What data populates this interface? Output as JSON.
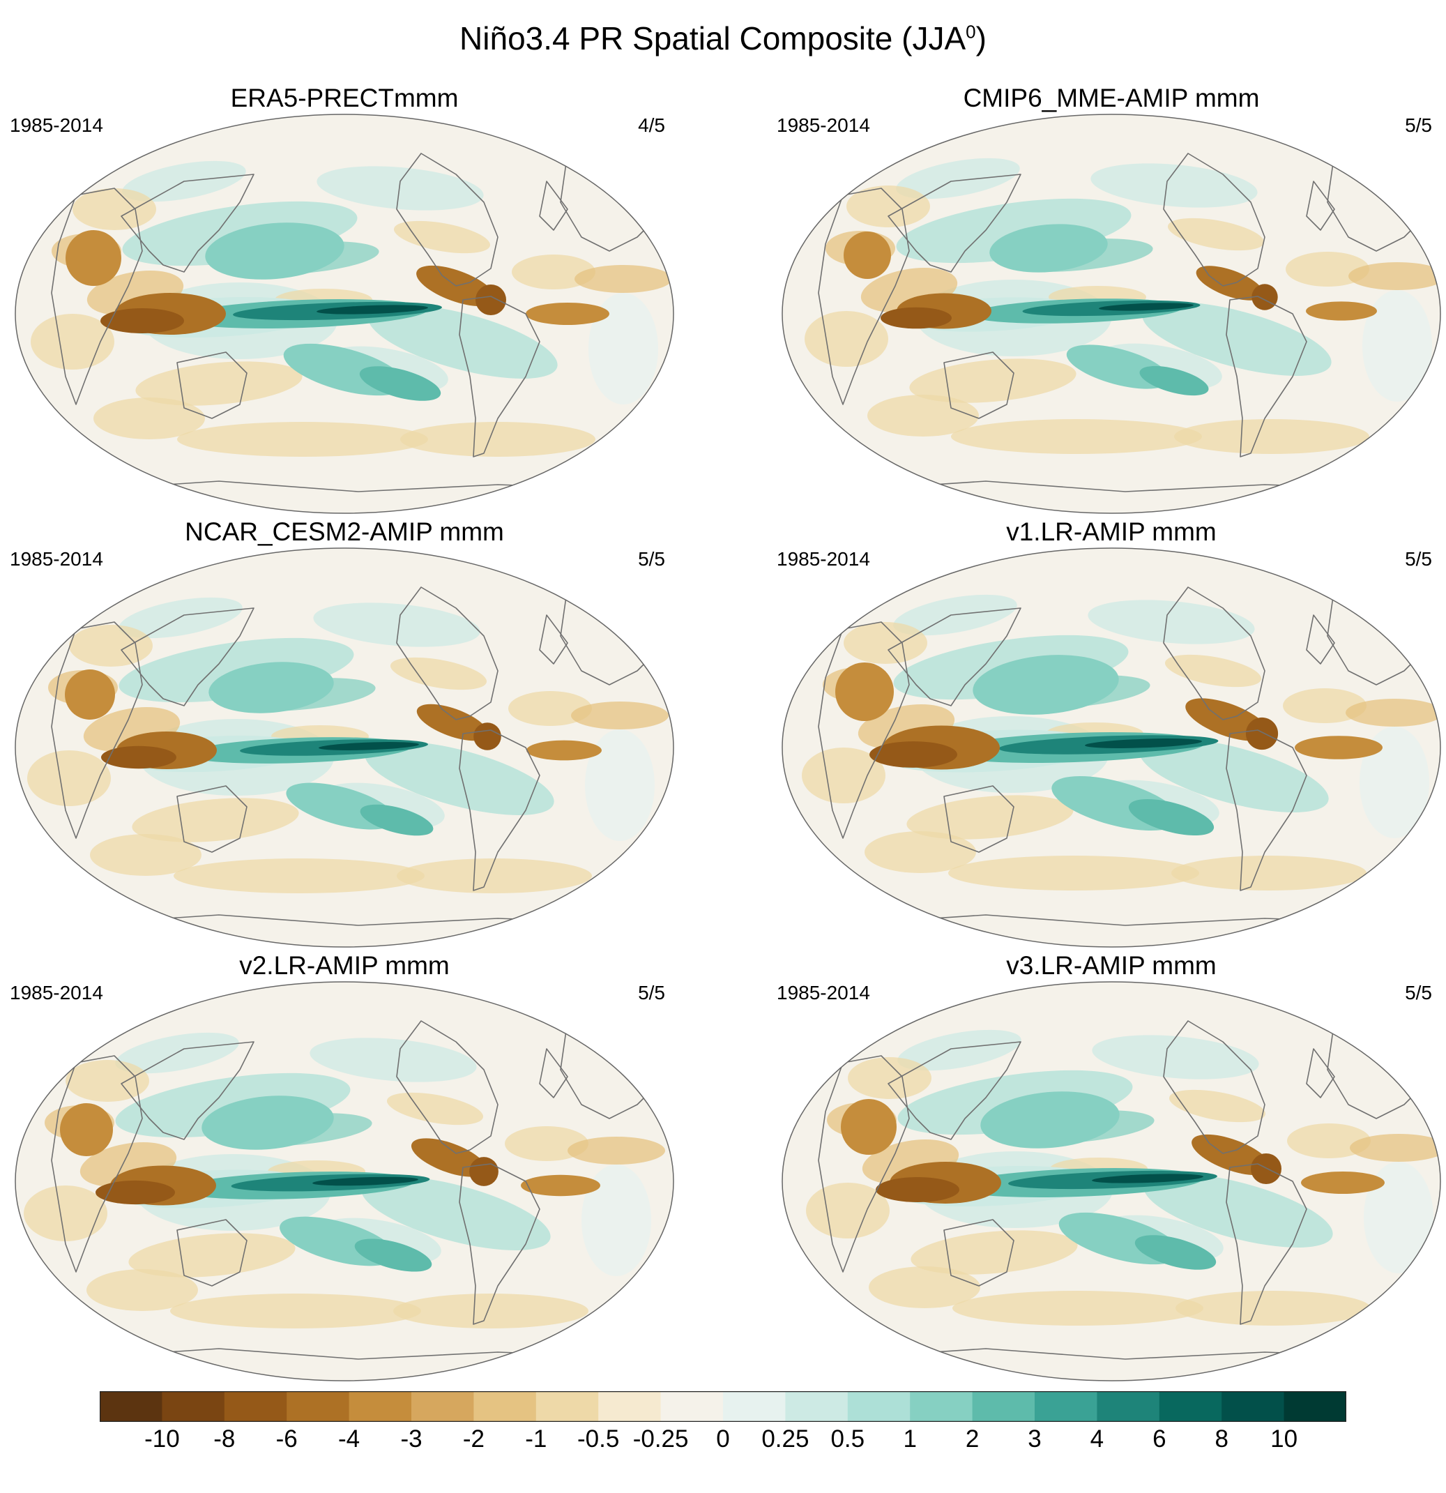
{
  "figure": {
    "title": "Niño3.4 PR Spatial Composite (JJA",
    "title_sup": "0",
    "title_close": ")"
  },
  "panels": [
    {
      "title": "ERA5-PRECTmmm",
      "years": "1985-2014",
      "fraction": "4/5"
    },
    {
      "title": "CMIP6_MME-AMIP  mmm",
      "years": "1985-2014",
      "fraction": "5/5"
    },
    {
      "title": "NCAR_CESM2-AMIP  mmm",
      "years": "1985-2014",
      "fraction": "5/5"
    },
    {
      "title": "v1.LR-AMIP  mmm",
      "years": "1985-2014",
      "fraction": "5/5"
    },
    {
      "title": "v2.LR-AMIP  mmm",
      "years": "1985-2014",
      "fraction": "5/5"
    },
    {
      "title": "v3.LR-AMIP  mmm",
      "years": "1985-2014",
      "fraction": "5/5"
    }
  ],
  "colorbar": {
    "labels": [
      "-10",
      "-8",
      "-6",
      "-4",
      "-3",
      "-2",
      "-1",
      "-0.5",
      "-0.25",
      "0",
      "0.25",
      "0.5",
      "1",
      "2",
      "3",
      "4",
      "6",
      "8",
      "10"
    ],
    "colors": [
      "#5c3410",
      "#7a4512",
      "#955918",
      "#ad7125",
      "#c58d3c",
      "#d6a75e",
      "#e5c382",
      "#eed9a8",
      "#f6ead0",
      "#f5f2ea",
      "#e7f2ef",
      "#cdeae4",
      "#ade0d7",
      "#86d0c2",
      "#5ebbab",
      "#3aa295",
      "#1e8479",
      "#08685e",
      "#02504a",
      "#003a33"
    ]
  },
  "colors": {
    "land_outline": "#707070",
    "globe_outline": "#666666",
    "background": "#f5f2ea"
  }
}
